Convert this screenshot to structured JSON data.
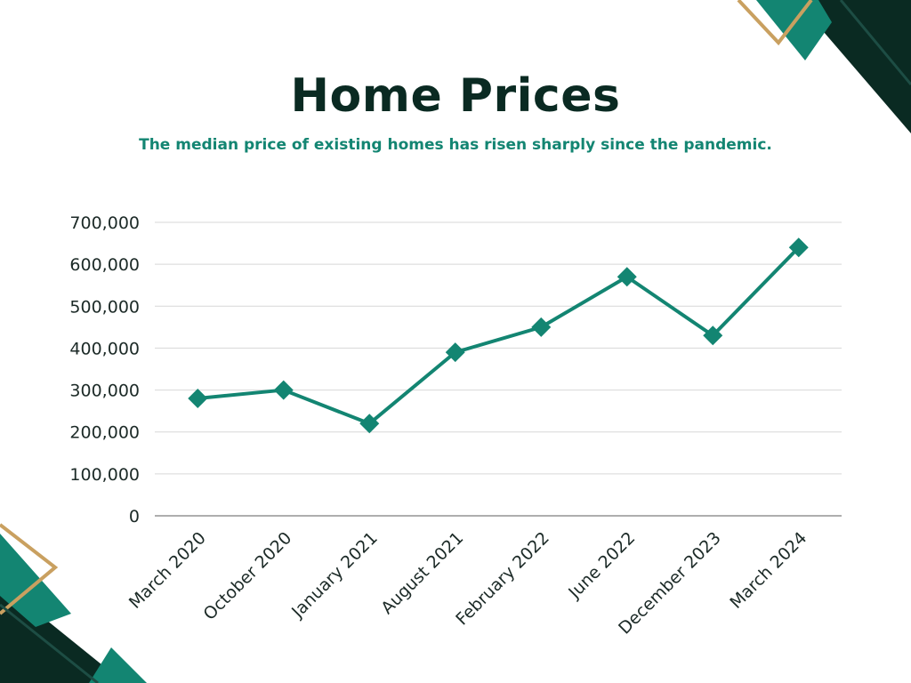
{
  "title": "Home Prices",
  "subtitle": "The median price of existing homes has risen sharply since the pandemic.",
  "colors": {
    "accent": "#138572",
    "dark": "#0a2a22",
    "gold": "#c9a060",
    "grid": "#d7d7d7",
    "axis": "#7d7d7d"
  },
  "chart_data": {
    "type": "line",
    "title": "Home Prices",
    "subtitle": "The median price of existing homes has risen sharply since the pandemic.",
    "xlabel": "",
    "ylabel": "",
    "categories": [
      "March 2020",
      "October 2020",
      "January 2021",
      "August 2021",
      "February 2022",
      "June 2022",
      "December 2023",
      "March 2024"
    ],
    "series": [
      {
        "values": [
          280000,
          300000,
          220000,
          390000,
          450000,
          570000,
          430000,
          640000
        ]
      }
    ],
    "yticks": [
      "0",
      "100,000",
      "200,000",
      "300,000",
      "400,000",
      "500,000",
      "600,000",
      "700,000"
    ],
    "ylim": [
      0,
      700000
    ],
    "grid": true,
    "legend": "none",
    "marker": "diamond"
  }
}
